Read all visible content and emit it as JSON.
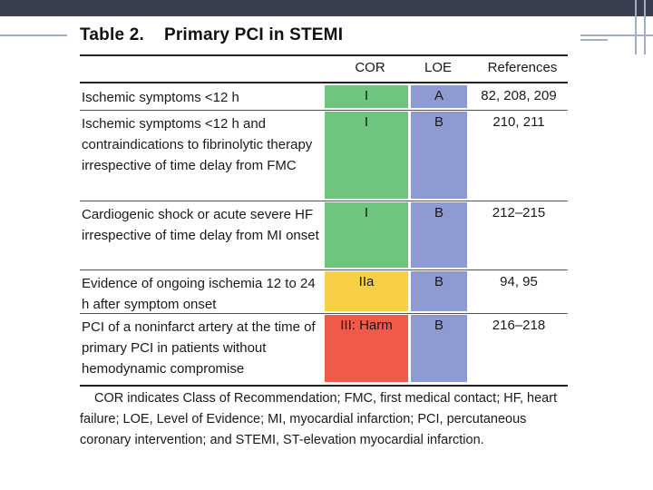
{
  "table": {
    "title_num": "Table 2.",
    "title_text": "Primary PCI in STEMI",
    "headers": {
      "cor": "COR",
      "loe": "LOE",
      "refs": "References"
    },
    "rows": [
      {
        "text": "Ischemic symptoms <12 h",
        "cor": "I",
        "loe": "A",
        "refs": "82, 208, 209"
      },
      {
        "text": "Ischemic symptoms <12 h and contraindications to fibrinolytic therapy irrespective of time delay from FMC",
        "cor": "I",
        "loe": "B",
        "refs": "210, 211"
      },
      {
        "text": "Cardiogenic shock or acute severe HF irrespective of time delay from MI onset",
        "cor": "I",
        "loe": "B",
        "refs": "212–215"
      },
      {
        "text": "Evidence of ongoing ischemia 12 to 24 h after symptom onset",
        "cor": "IIa",
        "loe": "B",
        "refs": "94, 95"
      },
      {
        "text": "PCI of a noninfarct artery at the time of primary PCI in patients without hemodynamic compromise",
        "cor": "III: Harm",
        "loe": "B",
        "refs": "216–218"
      }
    ],
    "footnote": "COR indicates Class of Recommendation; FMC, first medical contact; HF, heart failure; LOE, Level of Evidence; MI, myocardial infarction; PCI, percutaneous coronary intervention; and STEMI, ST-elevation myocardial infarction."
  },
  "colors": {
    "class_I": "#6ec57e",
    "class_IIa": "#f7d046",
    "class_III": "#ef5a4a",
    "loe": "#8e9ad2",
    "slide_bar": "#3a3f4f"
  }
}
